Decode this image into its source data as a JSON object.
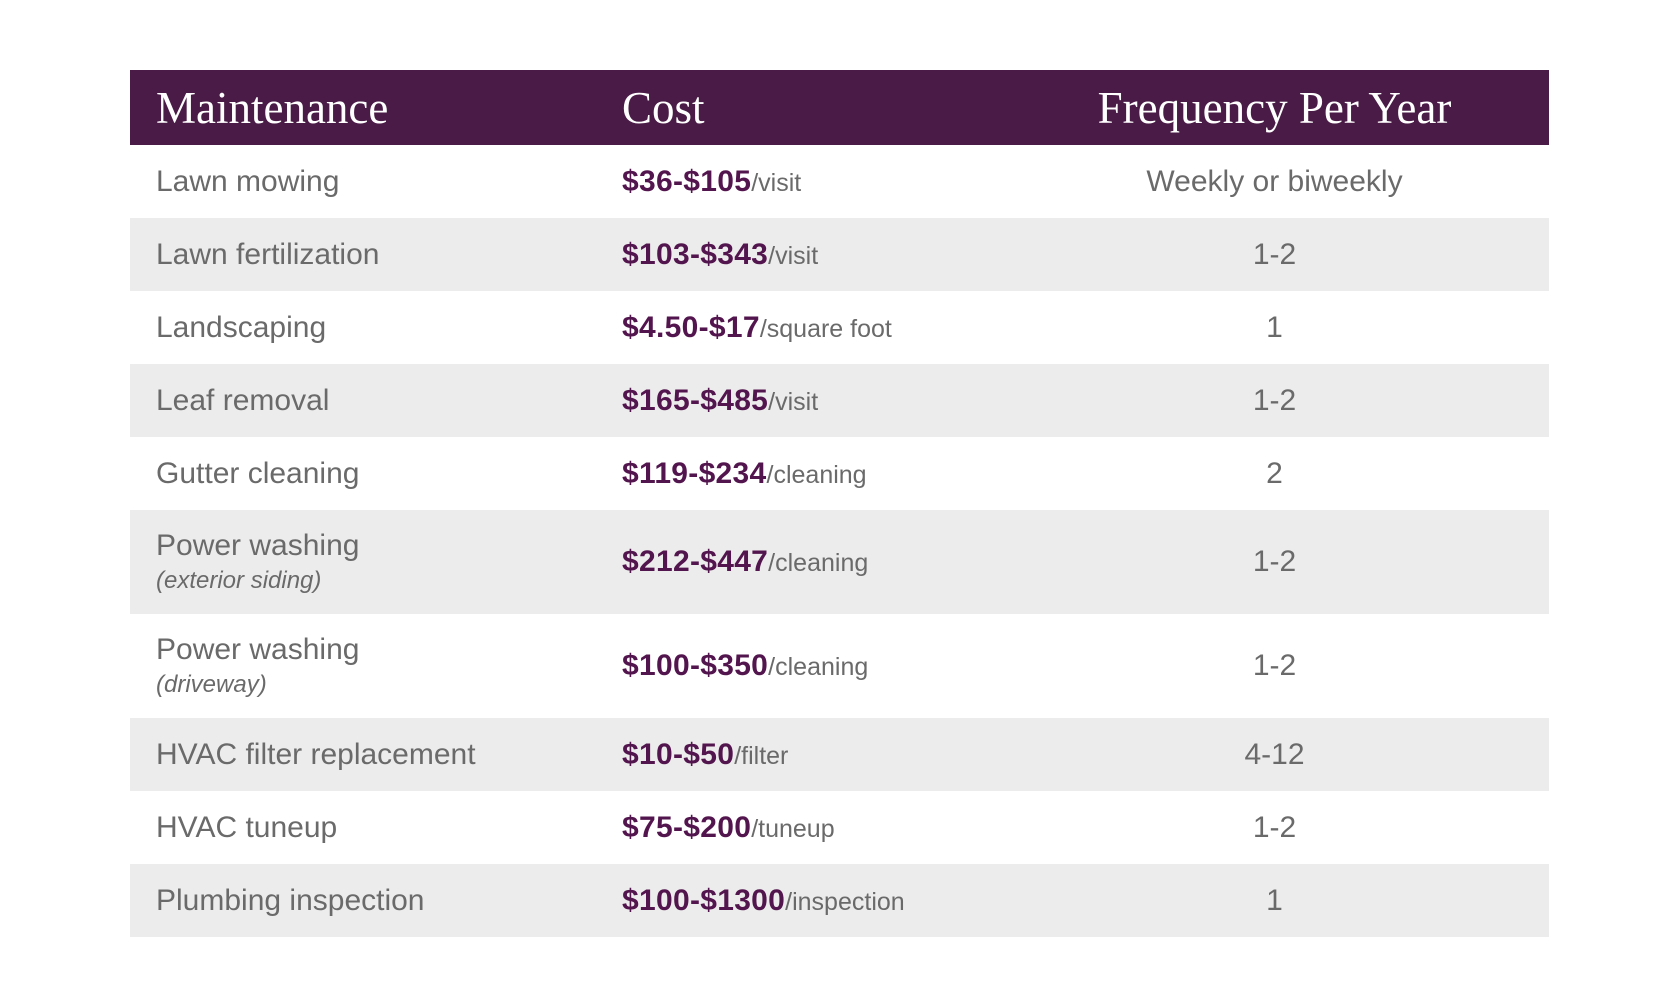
{
  "chart_data": {
    "type": "table",
    "title": "",
    "columns": [
      "Maintenance",
      "Cost",
      "Frequency Per Year"
    ],
    "rows": [
      [
        "Lawn mowing",
        "$36-$105/visit",
        "Weekly or biweekly"
      ],
      [
        "Lawn fertilization",
        "$103-$343/visit",
        "1-2"
      ],
      [
        "Landscaping",
        "$4.50-$17/square foot",
        "1"
      ],
      [
        "Leaf removal",
        "$165-$485/visit",
        "1-2"
      ],
      [
        "Gutter cleaning",
        "$119-$234/cleaning",
        "2"
      ],
      [
        "Power washing (exterior siding)",
        "$212-$447/cleaning",
        "1-2"
      ],
      [
        "Power washing (driveway)",
        "$100-$350/cleaning",
        "1-2"
      ],
      [
        "HVAC filter replacement",
        "$10-$50/filter",
        "4-12"
      ],
      [
        "HVAC tuneup",
        "$75-$200/tuneup",
        "1-2"
      ],
      [
        "Plumbing inspection",
        "$100-$1300/inspection",
        "1"
      ]
    ]
  },
  "table": {
    "header": {
      "maintenance": "Maintenance",
      "cost": "Cost",
      "frequency": "Frequency Per Year"
    },
    "rows": [
      {
        "name": "Lawn mowing",
        "cost": "$36-$105",
        "unit": "/visit",
        "freq": "Weekly or biweekly"
      },
      {
        "name": "Lawn fertilization",
        "cost": "$103-$343",
        "unit": "/visit",
        "freq": "1-2"
      },
      {
        "name": "Landscaping",
        "cost": "$4.50-$17",
        "unit": "/square foot",
        "freq": "1"
      },
      {
        "name": "Leaf removal",
        "cost": "$165-$485",
        "unit": "/visit",
        "freq": "1-2"
      },
      {
        "name": "Gutter cleaning",
        "cost": "$119-$234",
        "unit": "/cleaning",
        "freq": "2"
      },
      {
        "name": "Power washing",
        "sub": "(exterior siding)",
        "cost": "$212-$447",
        "unit": "/cleaning",
        "freq": "1-2"
      },
      {
        "name": "Power washing",
        "sub": "(driveway)",
        "cost": "$100-$350",
        "unit": "/cleaning",
        "freq": "1-2"
      },
      {
        "name": "HVAC filter replacement",
        "cost": "$10-$50",
        "unit": "/filter",
        "freq": "4-12"
      },
      {
        "name": "HVAC tuneup",
        "cost": "$75-$200",
        "unit": "/tuneup",
        "freq": "1-2"
      },
      {
        "name": "Plumbing inspection",
        "cost": "$100-$1300",
        "unit": "/inspection",
        "freq": "1"
      }
    ]
  },
  "colors": {
    "header_bg": "#4a1b46",
    "header_text": "#ffffff",
    "cost_text": "#53154d",
    "body_text": "#6a6a6a",
    "row_alt_bg": "#ececec",
    "page_bg": "#ffffff"
  }
}
